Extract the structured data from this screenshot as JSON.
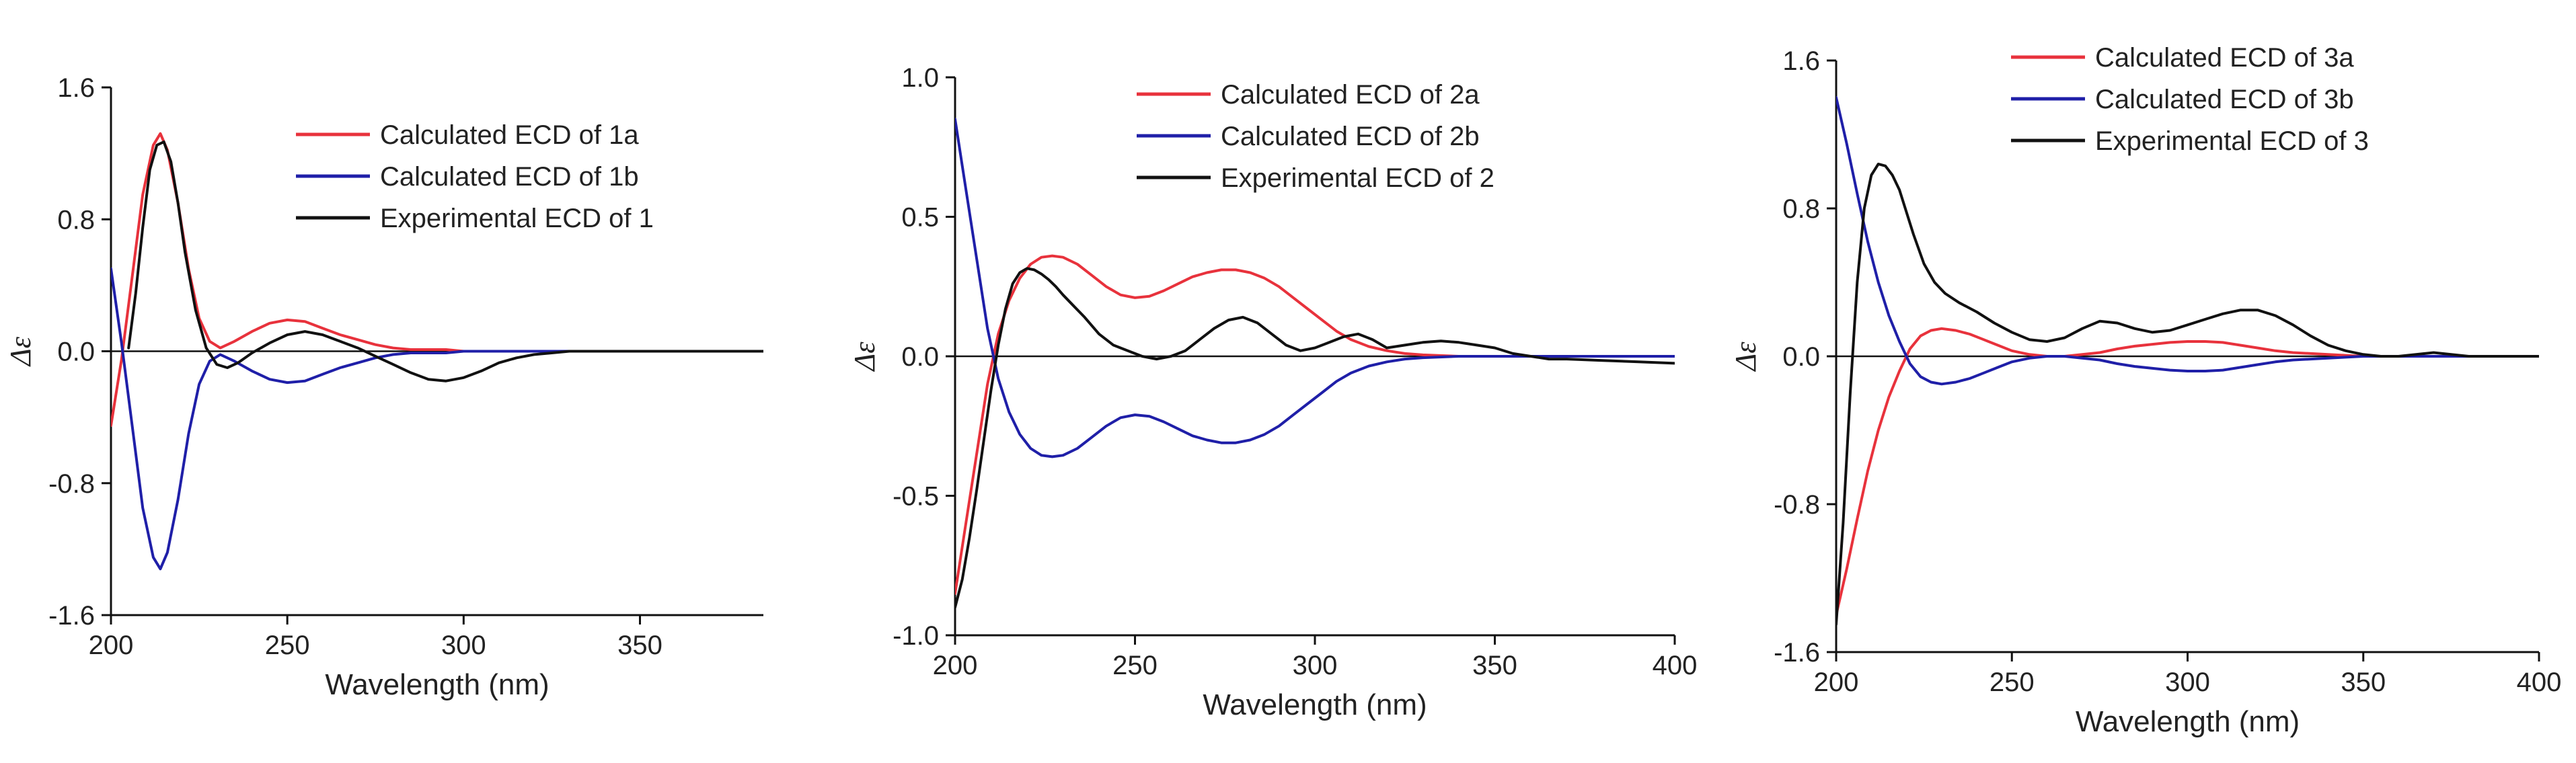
{
  "colors": {
    "red": "#e8323c",
    "blue": "#1f1fa8",
    "black": "#111111",
    "axis": "#111111"
  },
  "chart_data": [
    {
      "type": "line",
      "title": "",
      "xlabel": "Wavelength (nm)",
      "ylabel": "Δε",
      "xlim": [
        200,
        385
      ],
      "ylim": [
        -1.6,
        1.6
      ],
      "xticks": [
        200,
        250,
        300,
        350
      ],
      "yticks": [
        -1.6,
        -0.8,
        0.0,
        0.8,
        1.6
      ],
      "xtick_labels": [
        "200",
        "250",
        "300",
        "350"
      ],
      "ytick_labels": [
        "-1.6",
        "-0.8",
        "0.0",
        "0.8",
        "1.6"
      ],
      "legend_position": "top-right",
      "series": [
        {
          "name": "Calculated ECD of 1a",
          "color": "red",
          "x": [
            200,
            203,
            206,
            209,
            212,
            214,
            216,
            219,
            222,
            225,
            228,
            231,
            235,
            240,
            245,
            250,
            255,
            260,
            265,
            270,
            275,
            280,
            285,
            290,
            295,
            300,
            310,
            320,
            330,
            340,
            350,
            360,
            370,
            385
          ],
          "y": [
            -0.45,
            -0.05,
            0.45,
            0.95,
            1.25,
            1.32,
            1.22,
            0.9,
            0.5,
            0.2,
            0.06,
            0.02,
            0.06,
            0.12,
            0.17,
            0.19,
            0.18,
            0.14,
            0.1,
            0.07,
            0.04,
            0.02,
            0.01,
            0.01,
            0.01,
            0.0,
            0.0,
            0.0,
            0.0,
            0.0,
            0.0,
            0.0,
            0.0,
            0.0
          ]
        },
        {
          "name": "Calculated ECD of 1b",
          "color": "blue",
          "x": [
            200,
            203,
            206,
            209,
            212,
            214,
            216,
            219,
            222,
            225,
            228,
            231,
            235,
            240,
            245,
            250,
            255,
            260,
            265,
            270,
            275,
            280,
            285,
            290,
            295,
            300,
            310,
            320,
            330,
            340,
            350,
            360,
            370,
            385
          ],
          "y": [
            0.5,
            0.05,
            -0.45,
            -0.95,
            -1.25,
            -1.32,
            -1.22,
            -0.9,
            -0.5,
            -0.2,
            -0.06,
            -0.02,
            -0.06,
            -0.12,
            -0.17,
            -0.19,
            -0.18,
            -0.14,
            -0.1,
            -0.07,
            -0.04,
            -0.02,
            -0.01,
            -0.01,
            -0.01,
            0.0,
            0.0,
            0.0,
            0.0,
            0.0,
            0.0,
            0.0,
            0.0,
            0.0
          ]
        },
        {
          "name": "Experimental ECD of 1",
          "color": "black",
          "x": [
            205,
            207,
            209,
            211,
            213,
            215,
            217,
            219,
            221,
            224,
            227,
            230,
            233,
            236,
            240,
            245,
            250,
            255,
            260,
            265,
            270,
            275,
            280,
            285,
            290,
            295,
            300,
            305,
            310,
            315,
            320,
            325,
            330,
            340,
            350,
            360,
            370,
            385
          ],
          "y": [
            0.02,
            0.35,
            0.75,
            1.1,
            1.25,
            1.27,
            1.15,
            0.9,
            0.6,
            0.25,
            0.02,
            -0.08,
            -0.1,
            -0.07,
            -0.01,
            0.05,
            0.1,
            0.12,
            0.1,
            0.06,
            0.02,
            -0.03,
            -0.08,
            -0.13,
            -0.17,
            -0.18,
            -0.16,
            -0.12,
            -0.07,
            -0.04,
            -0.02,
            -0.01,
            0.0,
            0.0,
            0.0,
            0.0,
            0.0,
            0.0
          ]
        }
      ]
    },
    {
      "type": "line",
      "title": "",
      "xlabel": "Wavelength (nm)",
      "ylabel": "Δε",
      "xlim": [
        200,
        400
      ],
      "ylim": [
        -1.0,
        1.0
      ],
      "xticks": [
        200,
        250,
        300,
        350,
        400
      ],
      "yticks": [
        -1.0,
        -0.5,
        0.0,
        0.5,
        1.0
      ],
      "xtick_labels": [
        "200",
        "250",
        "300",
        "350",
        "400"
      ],
      "ytick_labels": [
        "-1.0",
        "-0.5",
        "0.0",
        "0.5",
        "1.0"
      ],
      "legend_position": "top-right",
      "series": [
        {
          "name": "Calculated ECD of 2a",
          "color": "red",
          "x": [
            200,
            203,
            206,
            209,
            212,
            215,
            218,
            221,
            224,
            227,
            230,
            234,
            238,
            242,
            246,
            250,
            254,
            258,
            262,
            266,
            270,
            274,
            278,
            282,
            286,
            290,
            294,
            298,
            302,
            306,
            310,
            315,
            320,
            325,
            330,
            340,
            350,
            360,
            370,
            380,
            390,
            400
          ],
          "y": [
            -0.85,
            -0.6,
            -0.35,
            -0.1,
            0.08,
            0.2,
            0.28,
            0.33,
            0.355,
            0.36,
            0.355,
            0.33,
            0.29,
            0.25,
            0.22,
            0.21,
            0.215,
            0.235,
            0.26,
            0.285,
            0.3,
            0.31,
            0.31,
            0.3,
            0.28,
            0.25,
            0.21,
            0.17,
            0.13,
            0.09,
            0.06,
            0.035,
            0.02,
            0.01,
            0.005,
            0.0,
            0.0,
            0.0,
            0.0,
            0.0,
            0.0,
            0.0
          ]
        },
        {
          "name": "Calculated ECD of 2b",
          "color": "blue",
          "x": [
            200,
            203,
            206,
            209,
            212,
            215,
            218,
            221,
            224,
            227,
            230,
            234,
            238,
            242,
            246,
            250,
            254,
            258,
            262,
            266,
            270,
            274,
            278,
            282,
            286,
            290,
            294,
            298,
            302,
            306,
            310,
            315,
            320,
            325,
            330,
            340,
            350,
            360,
            370,
            380,
            390,
            400
          ],
          "y": [
            0.85,
            0.6,
            0.35,
            0.1,
            -0.08,
            -0.2,
            -0.28,
            -0.33,
            -0.355,
            -0.36,
            -0.355,
            -0.33,
            -0.29,
            -0.25,
            -0.22,
            -0.21,
            -0.215,
            -0.235,
            -0.26,
            -0.285,
            -0.3,
            -0.31,
            -0.31,
            -0.3,
            -0.28,
            -0.25,
            -0.21,
            -0.17,
            -0.13,
            -0.09,
            -0.06,
            -0.035,
            -0.02,
            -0.01,
            -0.005,
            0.0,
            0.0,
            0.0,
            0.0,
            0.0,
            0.0,
            0.0
          ]
        },
        {
          "name": "Experimental ECD of 2",
          "color": "black",
          "x": [
            200,
            202,
            204,
            206,
            208,
            210,
            212,
            214,
            216,
            218,
            220,
            222,
            224,
            226,
            228,
            230,
            233,
            236,
            240,
            244,
            248,
            252,
            256,
            260,
            264,
            268,
            272,
            276,
            280,
            284,
            288,
            292,
            296,
            300,
            304,
            308,
            312,
            316,
            320,
            325,
            330,
            335,
            340,
            345,
            350,
            355,
            360,
            365,
            370,
            380,
            390,
            400
          ],
          "y": [
            -0.9,
            -0.8,
            -0.65,
            -0.48,
            -0.3,
            -0.12,
            0.04,
            0.17,
            0.26,
            0.3,
            0.315,
            0.31,
            0.295,
            0.275,
            0.25,
            0.22,
            0.18,
            0.14,
            0.08,
            0.04,
            0.02,
            0.0,
            -0.01,
            0.0,
            0.02,
            0.06,
            0.1,
            0.13,
            0.14,
            0.12,
            0.08,
            0.04,
            0.02,
            0.03,
            0.05,
            0.07,
            0.08,
            0.06,
            0.03,
            0.04,
            0.05,
            0.055,
            0.05,
            0.04,
            0.03,
            0.01,
            0.0,
            -0.01,
            -0.01,
            -0.015,
            -0.02,
            -0.025
          ]
        }
      ]
    },
    {
      "type": "line",
      "title": "",
      "xlabel": "Wavelength (nm)",
      "ylabel": "Δε",
      "xlim": [
        200,
        400
      ],
      "ylim": [
        -1.6,
        1.6
      ],
      "xticks": [
        200,
        250,
        300,
        350,
        400
      ],
      "yticks": [
        -1.6,
        -0.8,
        0.0,
        0.8,
        1.6
      ],
      "xtick_labels": [
        "200",
        "250",
        "300",
        "350",
        "400"
      ],
      "ytick_labels": [
        "-1.6",
        "-0.8",
        "0.0",
        "0.8",
        "1.6"
      ],
      "legend_position": "top-right",
      "series": [
        {
          "name": "Calculated ECD of 3a",
          "color": "red",
          "x": [
            200,
            203,
            206,
            209,
            212,
            215,
            218,
            221,
            224,
            227,
            230,
            234,
            238,
            242,
            246,
            250,
            255,
            260,
            265,
            270,
            275,
            280,
            285,
            290,
            295,
            300,
            305,
            310,
            315,
            320,
            325,
            330,
            340,
            350,
            360,
            370,
            380,
            390,
            400
          ],
          "y": [
            -1.4,
            -1.15,
            -0.88,
            -0.62,
            -0.4,
            -0.22,
            -0.08,
            0.04,
            0.11,
            0.14,
            0.15,
            0.14,
            0.12,
            0.09,
            0.06,
            0.03,
            0.01,
            0.0,
            0.0,
            0.01,
            0.02,
            0.04,
            0.055,
            0.065,
            0.075,
            0.08,
            0.08,
            0.075,
            0.06,
            0.045,
            0.03,
            0.02,
            0.01,
            0.0,
            0.0,
            0.0,
            0.0,
            0.0,
            0.0
          ]
        },
        {
          "name": "Calculated ECD of 3b",
          "color": "blue",
          "x": [
            200,
            203,
            206,
            209,
            212,
            215,
            218,
            221,
            224,
            227,
            230,
            234,
            238,
            242,
            246,
            250,
            255,
            260,
            265,
            270,
            275,
            280,
            285,
            290,
            295,
            300,
            305,
            310,
            315,
            320,
            325,
            330,
            340,
            350,
            360,
            370,
            380,
            390,
            400
          ],
          "y": [
            1.4,
            1.15,
            0.88,
            0.62,
            0.4,
            0.22,
            0.08,
            -0.04,
            -0.11,
            -0.14,
            -0.15,
            -0.14,
            -0.12,
            -0.09,
            -0.06,
            -0.03,
            -0.01,
            0.0,
            0.0,
            -0.01,
            -0.02,
            -0.04,
            -0.055,
            -0.065,
            -0.075,
            -0.08,
            -0.08,
            -0.075,
            -0.06,
            -0.045,
            -0.03,
            -0.02,
            -0.01,
            0.0,
            0.0,
            0.0,
            0.0,
            0.0,
            0.0
          ]
        },
        {
          "name": "Experimental ECD of 3",
          "color": "black",
          "x": [
            200,
            202,
            204,
            206,
            208,
            210,
            212,
            214,
            216,
            218,
            220,
            222,
            225,
            228,
            231,
            235,
            240,
            245,
            250,
            255,
            260,
            265,
            270,
            275,
            280,
            285,
            290,
            295,
            300,
            305,
            310,
            315,
            320,
            325,
            330,
            335,
            340,
            345,
            350,
            355,
            360,
            365,
            370,
            375,
            380,
            390,
            400
          ],
          "y": [
            -1.45,
            -0.9,
            -0.2,
            0.4,
            0.8,
            0.98,
            1.04,
            1.03,
            0.98,
            0.9,
            0.78,
            0.66,
            0.5,
            0.4,
            0.34,
            0.29,
            0.24,
            0.18,
            0.13,
            0.09,
            0.08,
            0.1,
            0.15,
            0.19,
            0.18,
            0.15,
            0.13,
            0.14,
            0.17,
            0.2,
            0.23,
            0.25,
            0.25,
            0.22,
            0.17,
            0.11,
            0.06,
            0.03,
            0.01,
            0.0,
            0.0,
            0.01,
            0.02,
            0.01,
            0.0,
            0.0,
            0.0
          ]
        }
      ]
    }
  ]
}
